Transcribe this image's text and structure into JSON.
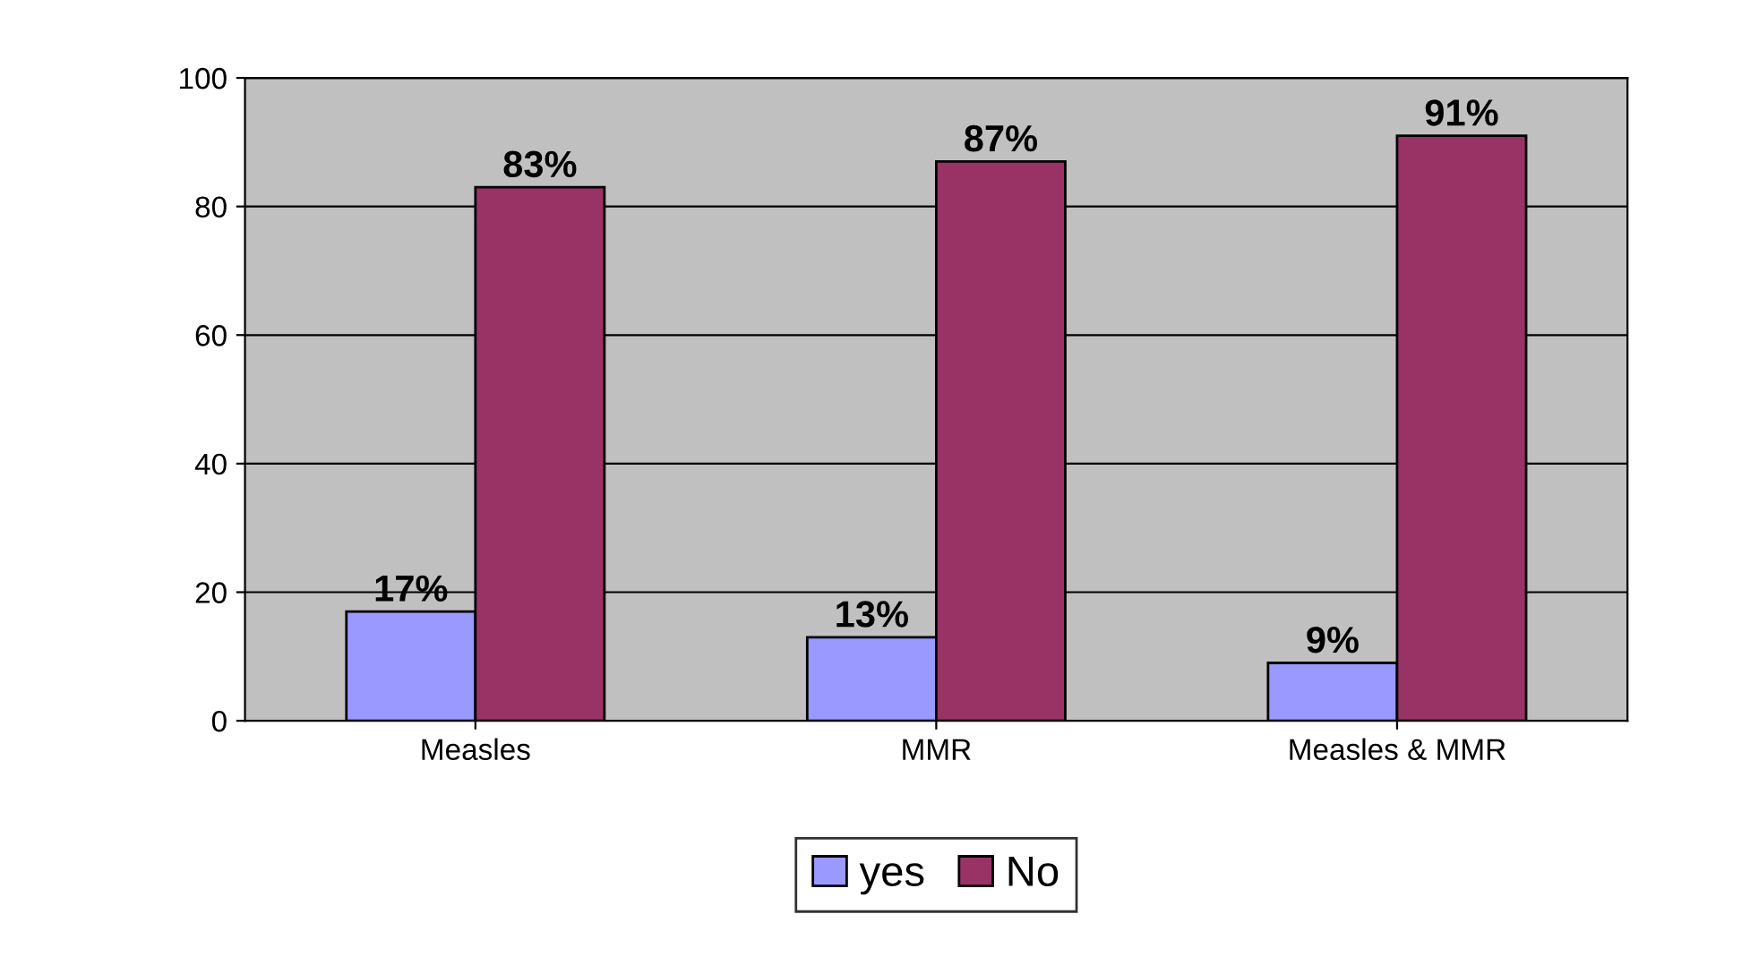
{
  "chart_data": {
    "type": "bar",
    "categories": [
      "Measles",
      "MMR",
      "Measles & MMR"
    ],
    "series": [
      {
        "name": "yes",
        "color": "#9999ff",
        "values": [
          17,
          13,
          9
        ],
        "value_labels": [
          "17%",
          "13%",
          "9%"
        ]
      },
      {
        "name": "No",
        "color": "#993366",
        "values": [
          83,
          87,
          91
        ],
        "value_labels": [
          "83%",
          "87%",
          "91%"
        ]
      }
    ],
    "ylim": [
      0,
      100
    ],
    "yticks": [
      0,
      20,
      40,
      60,
      80,
      100
    ],
    "grid": "y",
    "legend": "bottom"
  }
}
